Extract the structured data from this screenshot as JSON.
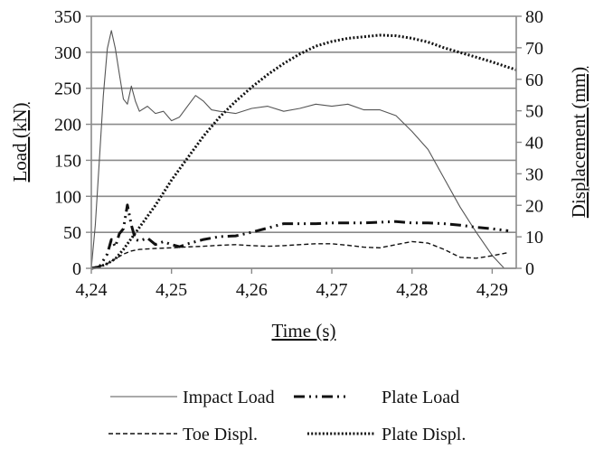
{
  "chart_data": {
    "type": "line",
    "xlabel": "Time (s)",
    "ylabel_left": "Load (kN)",
    "ylabel_right": "Displacement (mm)",
    "xlim": [
      4.24,
      4.293
    ],
    "ylim_left": [
      0,
      350
    ],
    "ylim_right": [
      0,
      80
    ],
    "x_ticks": [
      4.24,
      4.25,
      4.26,
      4.27,
      4.28,
      4.29
    ],
    "x_tick_labels": [
      "4,24",
      "4,25",
      "4,26",
      "4,27",
      "4,28",
      "4,29"
    ],
    "y_left_ticks": [
      0,
      50,
      100,
      150,
      200,
      250,
      300,
      350
    ],
    "y_left_tick_labels": [
      "0",
      "50",
      "100",
      "150",
      "200",
      "250",
      "300",
      "350"
    ],
    "y_right_ticks": [
      0,
      10,
      20,
      30,
      40,
      50,
      60,
      70,
      80
    ],
    "y_right_tick_labels": [
      "0",
      "10",
      "20",
      "30",
      "40",
      "50",
      "60",
      "70",
      "80"
    ],
    "grid": "horizontal",
    "legend_position": "bottom",
    "series": [
      {
        "name": "Impact Load",
        "axis": "left",
        "style": "solid-thin",
        "color": "#555555",
        "points": [
          [
            4.24,
            0
          ],
          [
            4.2405,
            60
          ],
          [
            4.241,
            150
          ],
          [
            4.2415,
            240
          ],
          [
            4.242,
            305
          ],
          [
            4.2425,
            330
          ],
          [
            4.243,
            305
          ],
          [
            4.2435,
            270
          ],
          [
            4.244,
            235
          ],
          [
            4.2445,
            228
          ],
          [
            4.245,
            253
          ],
          [
            4.2455,
            232
          ],
          [
            4.246,
            218
          ],
          [
            4.247,
            225
          ],
          [
            4.248,
            215
          ],
          [
            4.249,
            218
          ],
          [
            4.25,
            205
          ],
          [
            4.251,
            210
          ],
          [
            4.252,
            225
          ],
          [
            4.253,
            240
          ],
          [
            4.254,
            232
          ],
          [
            4.255,
            220
          ],
          [
            4.256,
            218
          ],
          [
            4.258,
            215
          ],
          [
            4.26,
            222
          ],
          [
            4.262,
            225
          ],
          [
            4.264,
            218
          ],
          [
            4.266,
            222
          ],
          [
            4.268,
            228
          ],
          [
            4.27,
            225
          ],
          [
            4.272,
            228
          ],
          [
            4.274,
            220
          ],
          [
            4.276,
            220
          ],
          [
            4.278,
            212
          ],
          [
            4.28,
            190
          ],
          [
            4.282,
            165
          ],
          [
            4.284,
            125
          ],
          [
            4.286,
            85
          ],
          [
            4.288,
            50
          ],
          [
            4.29,
            18
          ],
          [
            4.2915,
            0
          ]
        ]
      },
      {
        "name": "Plate Load",
        "axis": "left",
        "style": "dash-dot-dot",
        "color": "#111111",
        "points": [
          [
            4.24,
            0
          ],
          [
            4.241,
            2
          ],
          [
            4.242,
            20
          ],
          [
            4.2425,
            40
          ],
          [
            4.243,
            30
          ],
          [
            4.2435,
            48
          ],
          [
            4.244,
            55
          ],
          [
            4.2445,
            88
          ],
          [
            4.245,
            60
          ],
          [
            4.2455,
            40
          ],
          [
            4.246,
            38
          ],
          [
            4.247,
            42
          ],
          [
            4.248,
            33
          ],
          [
            4.249,
            37
          ],
          [
            4.25,
            33
          ],
          [
            4.251,
            30
          ],
          [
            4.252,
            34
          ],
          [
            4.254,
            40
          ],
          [
            4.256,
            44
          ],
          [
            4.258,
            45
          ],
          [
            4.26,
            50
          ],
          [
            4.262,
            56
          ],
          [
            4.264,
            62
          ],
          [
            4.266,
            62
          ],
          [
            4.268,
            62
          ],
          [
            4.27,
            63
          ],
          [
            4.272,
            63
          ],
          [
            4.274,
            63
          ],
          [
            4.276,
            64
          ],
          [
            4.278,
            65
          ],
          [
            4.28,
            63
          ],
          [
            4.282,
            63
          ],
          [
            4.284,
            62
          ],
          [
            4.286,
            60
          ],
          [
            4.288,
            57
          ],
          [
            4.29,
            55
          ],
          [
            4.292,
            52
          ]
        ]
      },
      {
        "name": "Toe Displ.",
        "axis": "right",
        "style": "dashed",
        "color": "#111111",
        "points": [
          [
            4.24,
            0
          ],
          [
            4.241,
            0.5
          ],
          [
            4.242,
            1.5
          ],
          [
            4.243,
            3
          ],
          [
            4.244,
            4.5
          ],
          [
            4.245,
            5.5
          ],
          [
            4.246,
            6
          ],
          [
            4.248,
            6.3
          ],
          [
            4.25,
            6.5
          ],
          [
            4.252,
            6.8
          ],
          [
            4.254,
            7
          ],
          [
            4.256,
            7.3
          ],
          [
            4.258,
            7.5
          ],
          [
            4.26,
            7.2
          ],
          [
            4.262,
            7
          ],
          [
            4.264,
            7.2
          ],
          [
            4.266,
            7.5
          ],
          [
            4.268,
            7.8
          ],
          [
            4.27,
            7.8
          ],
          [
            4.272,
            7.3
          ],
          [
            4.274,
            6.7
          ],
          [
            4.276,
            6.5
          ],
          [
            4.278,
            7.5
          ],
          [
            4.28,
            8.5
          ],
          [
            4.282,
            8
          ],
          [
            4.284,
            6
          ],
          [
            4.286,
            3.5
          ],
          [
            4.288,
            3.2
          ],
          [
            4.29,
            4
          ],
          [
            4.292,
            5
          ]
        ]
      },
      {
        "name": "Plate Displ.",
        "axis": "right",
        "style": "dotted",
        "color": "#111111",
        "points": [
          [
            4.24,
            0
          ],
          [
            4.241,
            0.5
          ],
          [
            4.242,
            1.5
          ],
          [
            4.243,
            3
          ],
          [
            4.244,
            6
          ],
          [
            4.246,
            13
          ],
          [
            4.248,
            20
          ],
          [
            4.25,
            28
          ],
          [
            4.252,
            35
          ],
          [
            4.254,
            42
          ],
          [
            4.256,
            48
          ],
          [
            4.258,
            53
          ],
          [
            4.26,
            57.5
          ],
          [
            4.262,
            61.5
          ],
          [
            4.264,
            65
          ],
          [
            4.266,
            68
          ],
          [
            4.268,
            70.5
          ],
          [
            4.27,
            72
          ],
          [
            4.272,
            73
          ],
          [
            4.274,
            73.5
          ],
          [
            4.276,
            74
          ],
          [
            4.278,
            73.8
          ],
          [
            4.28,
            73
          ],
          [
            4.282,
            71.8
          ],
          [
            4.284,
            70
          ],
          [
            4.286,
            68.5
          ],
          [
            4.288,
            67
          ],
          [
            4.29,
            65.5
          ],
          [
            4.292,
            63.8
          ],
          [
            4.293,
            63
          ]
        ]
      }
    ]
  }
}
